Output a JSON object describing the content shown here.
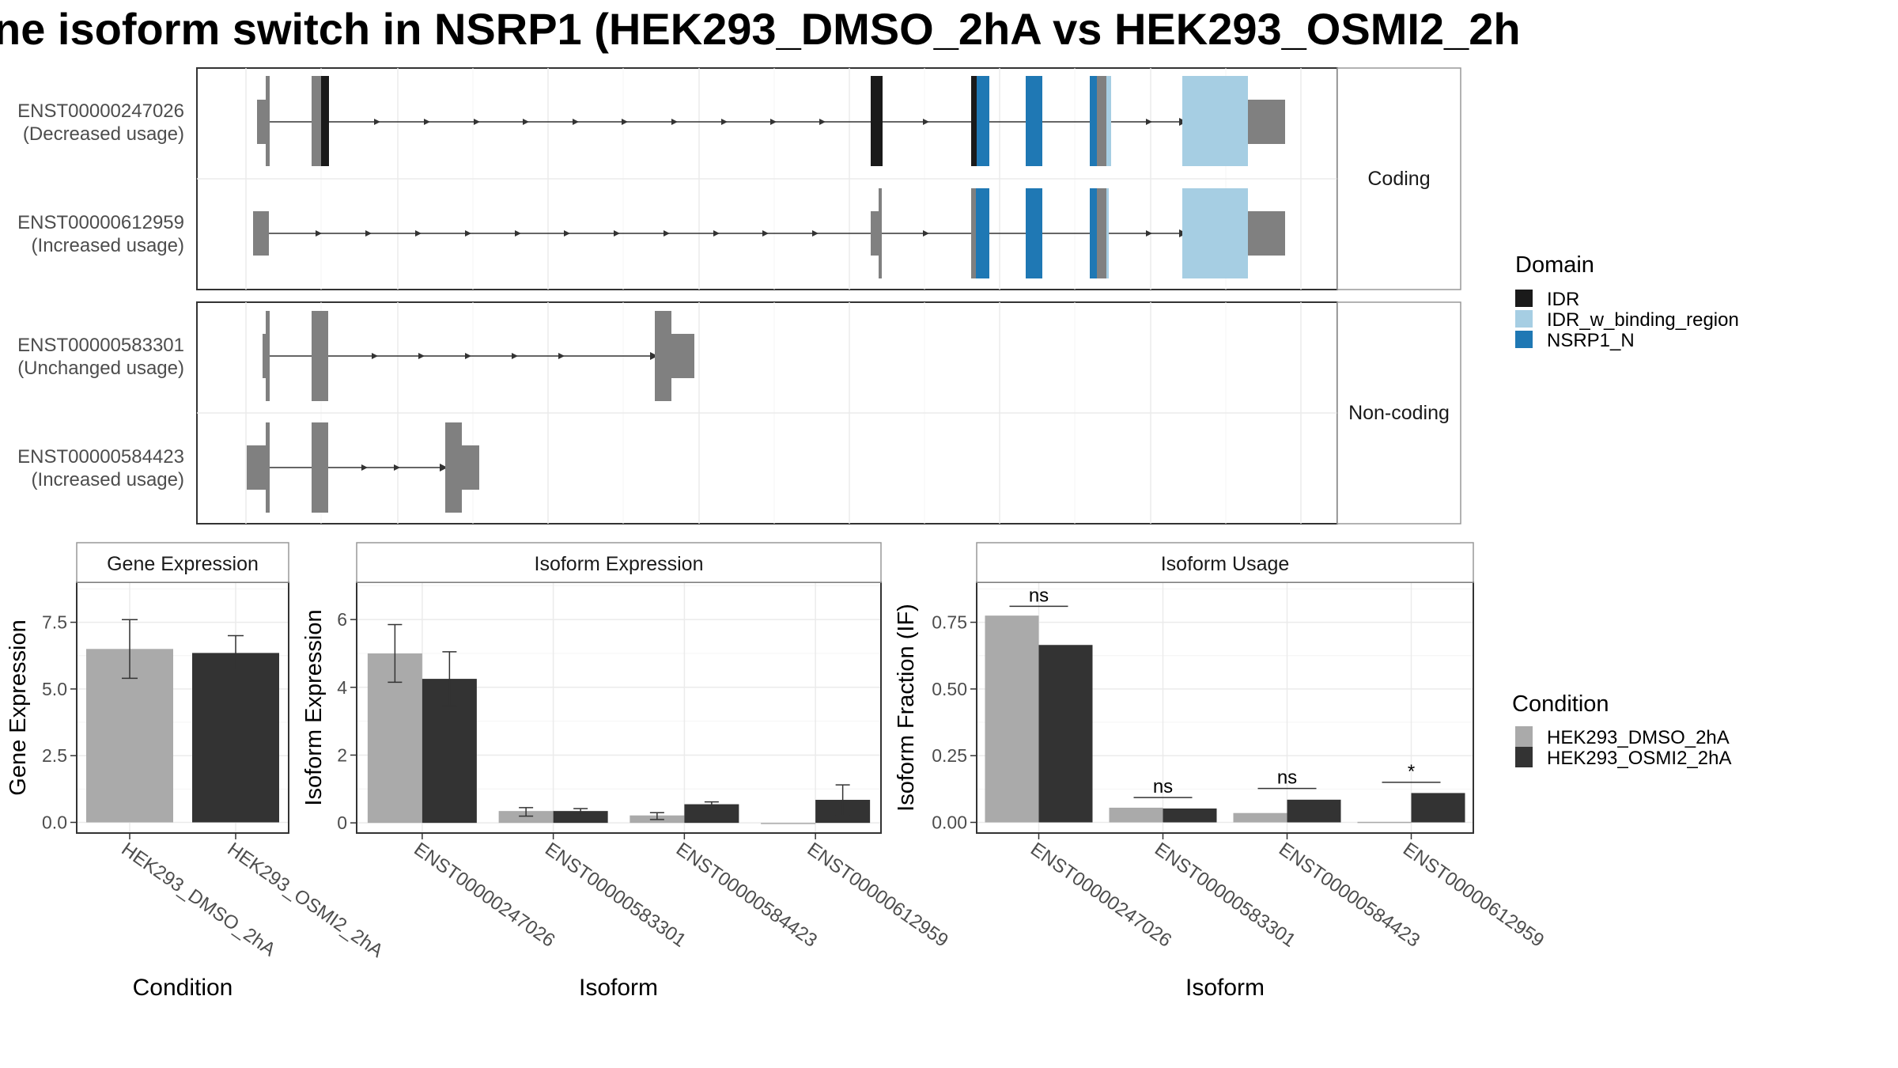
{
  "title": "ne isoform switch in NSRP1 (HEK293_DMSO_2hA vs HEK293_OSMI2_2h",
  "domain_legend": {
    "title": "Domain",
    "items": [
      {
        "label": "IDR",
        "color": "#1a1a1a"
      },
      {
        "label": "IDR_w_binding_region",
        "color": "#a6cee3"
      },
      {
        "label": "NSRP1_N",
        "color": "#1f78b4"
      }
    ]
  },
  "condition_legend": {
    "title": "Condition",
    "items": [
      {
        "label": "HEK293_DMSO_2hA",
        "color": "#aaaaaa"
      },
      {
        "label": "HEK293_OSMI2_2hA",
        "color": "#333333"
      }
    ]
  },
  "colors": {
    "exon": "#808080",
    "intron": "#333333",
    "grid": "#ebebeb",
    "panel_border": "#333333",
    "strip_border": "#999999",
    "strip_fill": "#ffffff"
  },
  "isoform_structure": {
    "facets": [
      {
        "label": "Coding",
        "isoforms": [
          {
            "id": "ENST00000247026",
            "note": "(Decreased usage)"
          },
          {
            "id": "ENST00000612959",
            "note": "(Increased usage)"
          }
        ]
      },
      {
        "label": "Non-coding",
        "isoforms": [
          {
            "id": "ENST00000583301",
            "note": "(Unchanged usage)"
          },
          {
            "id": "ENST00000584423",
            "note": "(Increased usage)"
          }
        ]
      }
    ]
  },
  "chart_data": [
    {
      "type": "bar",
      "title": "Gene Expression",
      "xlabel": "Condition",
      "ylabel": "Gene Expression",
      "categories": [
        "HEK293_DMSO_2hA",
        "HEK293_OSMI2_2hA"
      ],
      "values": [
        6.5,
        6.35
      ],
      "error_low": [
        5.4,
        5.7
      ],
      "error_high": [
        7.6,
        7.0
      ],
      "ylim": [
        -0.4,
        9.0
      ],
      "yticks": [
        0.0,
        2.5,
        5.0,
        7.5
      ],
      "ytick_labels": [
        "0.0",
        "2.5",
        "5.0",
        "7.5"
      ],
      "grid": true
    },
    {
      "type": "bar",
      "title": "Isoform Expression",
      "xlabel": "Isoform",
      "ylabel": "Isoform Expression",
      "categories": [
        "ENST00000247026",
        "ENST00000583301",
        "ENST00000584423",
        "ENST00000612959"
      ],
      "series": [
        {
          "name": "HEK293_DMSO_2hA",
          "values": [
            5.0,
            0.35,
            0.22,
            0.0
          ],
          "error_low": [
            4.15,
            0.2,
            0.1,
            0.0
          ],
          "error_high": [
            5.85,
            0.45,
            0.3,
            0.0
          ]
        },
        {
          "name": "HEK293_OSMI2_2hA",
          "values": [
            4.25,
            0.35,
            0.55,
            0.68
          ],
          "error_low": [
            3.45,
            0.28,
            0.48,
            0.22
          ],
          "error_high": [
            5.05,
            0.42,
            0.62,
            1.12
          ]
        }
      ],
      "ylim": [
        -0.3,
        7.1
      ],
      "yticks": [
        0,
        2,
        4,
        6
      ],
      "ytick_labels": [
        "0",
        "2",
        "4",
        "6"
      ],
      "grid": true
    },
    {
      "type": "bar",
      "title": "Isoform Usage",
      "xlabel": "Isoform",
      "ylabel": "Isoform Fraction (IF)",
      "categories": [
        "ENST00000247026",
        "ENST00000583301",
        "ENST00000584423",
        "ENST00000612959"
      ],
      "series": [
        {
          "name": "HEK293_DMSO_2hA",
          "values": [
            0.775,
            0.055,
            0.035,
            0.002
          ]
        },
        {
          "name": "HEK293_OSMI2_2hA",
          "values": [
            0.665,
            0.052,
            0.085,
            0.11
          ]
        }
      ],
      "significance": [
        {
          "label": "ns",
          "y": 0.81
        },
        {
          "label": "ns",
          "y": 0.093
        },
        {
          "label": "ns",
          "y": 0.127
        },
        {
          "label": "*",
          "y": 0.15
        }
      ],
      "ylim": [
        -0.04,
        0.9
      ],
      "yticks": [
        0.0,
        0.25,
        0.5,
        0.75
      ],
      "ytick_labels": [
        "0.00",
        "0.25",
        "0.50",
        "0.75"
      ],
      "grid": true
    }
  ]
}
